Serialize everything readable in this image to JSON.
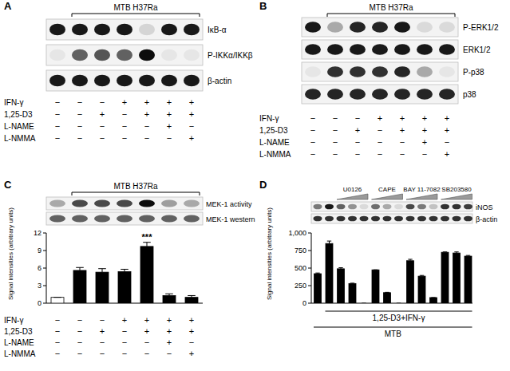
{
  "panels": [
    {
      "letter": "A",
      "bracket": {
        "text": "MTB H37Ra",
        "from": 1,
        "to": 6
      },
      "blots": [
        {
          "label": "IκB-α",
          "bands": [
            0.9,
            0.9,
            0.9,
            0.9,
            0.12,
            0.9,
            0.9
          ]
        },
        {
          "label": "P-IKKα/IKKβ",
          "bands": [
            0.05,
            0.6,
            0.65,
            0.6,
            0.95,
            0.05,
            0.05
          ]
        },
        {
          "label": "β-actin",
          "bands": [
            0.9,
            0.9,
            0.9,
            0.9,
            0.9,
            0.9,
            0.9
          ]
        }
      ],
      "conditions": [
        {
          "label": "IFN-γ",
          "signs": [
            "−",
            "−",
            "−",
            "+",
            "+",
            "+",
            "+"
          ]
        },
        {
          "label": "1,25-D3",
          "signs": [
            "−",
            "−",
            "+",
            "−",
            "+",
            "+",
            "+"
          ]
        },
        {
          "label": "L-NAME",
          "signs": [
            "−",
            "−",
            "−",
            "−",
            "−",
            "+",
            "−"
          ]
        },
        {
          "label": "L-NMMA",
          "signs": [
            "−",
            "−",
            "−",
            "−",
            "−",
            "−",
            "+"
          ]
        }
      ]
    },
    {
      "letter": "B",
      "bracket": {
        "text": "MTB H37Ra",
        "from": 1,
        "to": 6
      },
      "blots": [
        {
          "label": "P-ERK1/2",
          "bands": [
            0.9,
            0.3,
            0.85,
            0.85,
            0.9,
            0.1,
            0.1
          ]
        },
        {
          "label": "ERK1/2",
          "bands": [
            0.9,
            0.9,
            0.9,
            0.9,
            0.9,
            0.9,
            0.9
          ]
        },
        {
          "label": "P-p38",
          "bands": [
            0.05,
            0.8,
            0.8,
            0.8,
            0.85,
            0.3,
            0.05
          ]
        },
        {
          "label": "p38",
          "bands": [
            0.85,
            0.85,
            0.85,
            0.85,
            0.85,
            0.85,
            0.85
          ]
        }
      ],
      "conditions": [
        {
          "label": "IFN-γ",
          "signs": [
            "−",
            "−",
            "−",
            "+",
            "+",
            "+",
            "+"
          ]
        },
        {
          "label": "1,25-D3",
          "signs": [
            "−",
            "−",
            "+",
            "−",
            "+",
            "+",
            "+"
          ]
        },
        {
          "label": "L-NAME",
          "signs": [
            "−",
            "−",
            "−",
            "−",
            "−",
            "+",
            "−"
          ]
        },
        {
          "label": "L-NMMA",
          "signs": [
            "−",
            "−",
            "−",
            "−",
            "−",
            "−",
            "+"
          ]
        }
      ]
    }
  ],
  "chart_data": [
    {
      "type": "bar",
      "letter": "C",
      "bracket": {
        "text": "MTB H37Ra",
        "from": 1,
        "to": 6
      },
      "blots": [
        {
          "label": "MEK-1 activity",
          "bands": [
            0.3,
            0.7,
            0.7,
            0.7,
            0.95,
            0.35,
            0.3
          ]
        },
        {
          "label": "MEK-1 western",
          "bands": [
            0.6,
            0.6,
            0.6,
            0.6,
            0.6,
            0.6,
            0.6
          ]
        }
      ],
      "ylabel": "Signal intensities (arbitrary units)",
      "categories": [
        null,
        null,
        null,
        null,
        null,
        null,
        null
      ],
      "values": [
        1.0,
        5.6,
        5.3,
        5.4,
        9.7,
        1.3,
        1.0
      ],
      "errors": [
        0,
        0.5,
        0.6,
        0.4,
        0.7,
        0.3,
        0.3
      ],
      "colors": [
        "#ffffff",
        "#000000",
        "#000000",
        "#000000",
        "#000000",
        "#000000",
        "#000000"
      ],
      "ylim": [
        0,
        12
      ],
      "yticks": [
        0,
        3,
        6,
        9,
        12
      ],
      "annotations": [
        {
          "index": 4,
          "text": "***"
        }
      ],
      "conditions": [
        {
          "label": "IFN-γ",
          "signs": [
            "−",
            "−",
            "−",
            "+",
            "+",
            "+",
            "+"
          ]
        },
        {
          "label": "1,25-D3",
          "signs": [
            "−",
            "−",
            "+",
            "−",
            "+",
            "+",
            "+"
          ]
        },
        {
          "label": "L-NAME",
          "signs": [
            "−",
            "−",
            "−",
            "−",
            "−",
            "+",
            "−"
          ]
        },
        {
          "label": "L-NMMA",
          "signs": [
            "−",
            "−",
            "−",
            "−",
            "−",
            "−",
            "+"
          ]
        }
      ]
    },
    {
      "type": "bar",
      "letter": "D",
      "groups": [
        {
          "text": "U0126",
          "from": 2,
          "to": 4
        },
        {
          "text": "CAPE",
          "from": 5,
          "to": 7
        },
        {
          "text": "BAY 11-7082",
          "from": 8,
          "to": 10
        },
        {
          "text": "SB203580",
          "from": 11,
          "to": 13
        }
      ],
      "blots": [
        {
          "label": "iNOS",
          "bands": [
            0.5,
            0.9,
            0.6,
            0.4,
            0.1,
            0.55,
            0.3,
            0.1,
            0.7,
            0.5,
            0.2,
            0.8,
            0.8,
            0.75
          ]
        },
        {
          "label": "β-actin",
          "bands": [
            0.8,
            0.8,
            0.8,
            0.8,
            0.8,
            0.8,
            0.8,
            0.8,
            0.8,
            0.8,
            0.8,
            0.8,
            0.8,
            0.8
          ]
        }
      ],
      "ylabel": "Signal intensities (arbitrary units)",
      "categories": [
        null,
        null,
        null,
        null,
        null,
        null,
        null,
        null,
        null,
        null,
        null,
        null,
        null,
        null
      ],
      "values": [
        420,
        850,
        490,
        280,
        0,
        475,
        150,
        0,
        605,
        385,
        80,
        725,
        715,
        670
      ],
      "errors": [
        10,
        35,
        15,
        5,
        0,
        0,
        5,
        0,
        20,
        10,
        0,
        5,
        15,
        10
      ],
      "color": "#000000",
      "ylim": [
        0,
        1000
      ],
      "yticks": [
        0,
        250,
        500,
        750,
        {
          "value": 1000,
          "label": "1,000"
        }
      ],
      "brackets": [
        {
          "text": "1,25-D3+IFN-γ",
          "from": 1,
          "to": 13
        },
        {
          "text": "MTB",
          "from": 0,
          "to": 13
        }
      ]
    }
  ]
}
